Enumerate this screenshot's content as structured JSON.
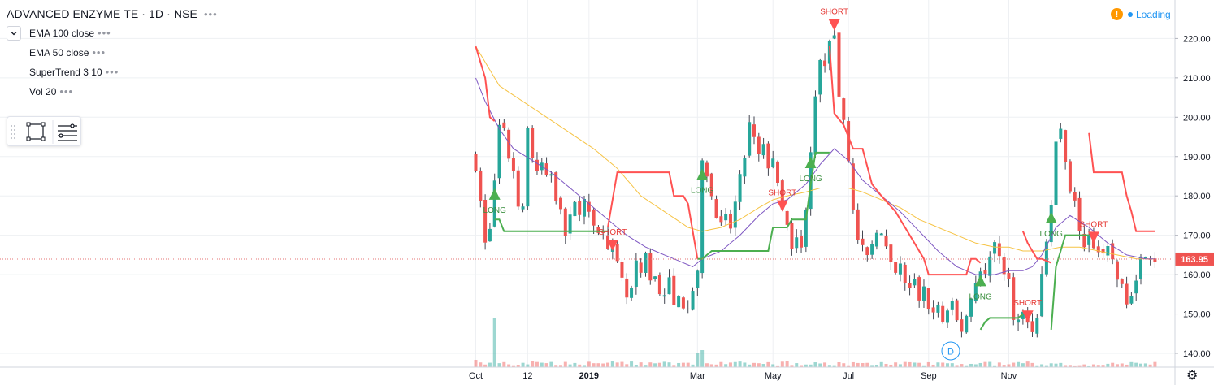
{
  "header": {
    "symbol_title": "ADVANCED ENZYME TE · 1D · NSE",
    "more_glyph": "•••",
    "indicators": [
      {
        "label": "EMA 100 close"
      },
      {
        "label": "EMA 50 close"
      },
      {
        "label": "SuperTrend 3 10"
      },
      {
        "label": "Vol 20"
      }
    ]
  },
  "status": {
    "warning_glyph": "!",
    "loading_text": "Loading"
  },
  "colors": {
    "up": "#26a69a",
    "down": "#ef5350",
    "wick": "#434651",
    "ema100": "#f6c344",
    "ema50": "#7e57c2",
    "supertrend_up": "#4caf50",
    "supertrend_down": "#ff5252",
    "price_line": "#e57373",
    "price_label_bg": "#ef5350",
    "grid": "#eef0f3"
  },
  "last_price_label": "163.95",
  "labels": {
    "event_marker": "D"
  },
  "chart_data": {
    "type": "candlestick",
    "title": "ADVANCED ENZYME TE · 1D · NSE",
    "y_axis": {
      "range": [
        138,
        225
      ],
      "ticks": [
        "140.00",
        "150.00",
        "160.00",
        "170.00",
        "180.00",
        "190.00",
        "200.00",
        "210.00",
        "220.00"
      ]
    },
    "x_axis": {
      "range": [
        -1,
        175
      ],
      "ticks": [
        {
          "label": "Oct",
          "x": 0
        },
        {
          "label": "12",
          "x": 11
        },
        {
          "label": "2019",
          "x": 24
        },
        {
          "label": "Mar",
          "x": 47
        },
        {
          "label": "May",
          "x": 63
        },
        {
          "label": "Jul",
          "x": 79
        },
        {
          "label": "Sep",
          "x": 96
        },
        {
          "label": "Nov",
          "x": 113
        }
      ]
    },
    "last_price": 163.95,
    "close_anchors": [
      [
        0,
        188
      ],
      [
        1,
        178
      ],
      [
        2,
        168
      ],
      [
        3,
        172
      ],
      [
        4,
        184
      ],
      [
        5,
        198
      ],
      [
        6,
        196
      ],
      [
        7,
        190
      ],
      [
        8,
        185
      ],
      [
        9,
        178
      ],
      [
        10,
        176
      ],
      [
        11,
        196
      ],
      [
        12,
        190
      ],
      [
        13,
        186
      ],
      [
        14,
        188
      ],
      [
        15,
        184
      ],
      [
        16,
        186
      ],
      [
        17,
        180
      ],
      [
        18,
        178
      ],
      [
        19,
        170
      ],
      [
        20,
        174
      ],
      [
        21,
        180
      ],
      [
        22,
        176
      ],
      [
        23,
        178
      ],
      [
        24,
        176
      ],
      [
        25,
        174
      ],
      [
        26,
        170
      ],
      [
        27,
        172
      ],
      [
        28,
        168
      ],
      [
        29,
        166
      ],
      [
        30,
        162
      ],
      [
        31,
        158
      ],
      [
        32,
        154
      ],
      [
        33,
        156
      ],
      [
        34,
        162
      ],
      [
        35,
        160
      ],
      [
        36,
        164
      ],
      [
        37,
        158
      ],
      [
        38,
        160
      ],
      [
        39,
        156
      ],
      [
        40,
        155
      ],
      [
        41,
        158
      ],
      [
        42,
        152
      ],
      [
        43,
        156
      ],
      [
        44,
        150
      ],
      [
        45,
        152
      ],
      [
        46,
        155
      ],
      [
        47,
        160
      ],
      [
        48,
        189
      ],
      [
        49,
        186
      ],
      [
        50,
        180
      ],
      [
        51,
        176
      ],
      [
        52,
        172
      ],
      [
        53,
        174
      ],
      [
        54,
        172
      ],
      [
        55,
        178
      ],
      [
        56,
        184
      ],
      [
        57,
        190
      ],
      [
        58,
        198
      ],
      [
        59,
        194
      ],
      [
        60,
        190
      ],
      [
        61,
        192
      ],
      [
        62,
        188
      ],
      [
        63,
        190
      ],
      [
        64,
        182
      ],
      [
        65,
        176
      ],
      [
        66,
        172
      ],
      [
        67,
        168
      ],
      [
        68,
        170
      ],
      [
        69,
        166
      ],
      [
        70,
        178
      ],
      [
        71,
        192
      ],
      [
        72,
        204
      ],
      [
        73,
        214
      ],
      [
        74,
        212
      ],
      [
        75,
        218
      ],
      [
        76,
        222
      ],
      [
        77,
        206
      ],
      [
        78,
        200
      ],
      [
        79,
        190
      ],
      [
        80,
        178
      ],
      [
        81,
        168
      ],
      [
        82,
        166
      ],
      [
        83,
        164
      ],
      [
        84,
        168
      ],
      [
        85,
        172
      ],
      [
        86,
        170
      ],
      [
        87,
        166
      ],
      [
        88,
        162
      ],
      [
        89,
        160
      ],
      [
        90,
        162
      ],
      [
        91,
        158
      ],
      [
        92,
        156
      ],
      [
        93,
        158
      ],
      [
        94,
        154
      ],
      [
        95,
        156
      ],
      [
        96,
        152
      ],
      [
        97,
        150
      ],
      [
        98,
        152
      ],
      [
        99,
        148
      ],
      [
        100,
        150
      ],
      [
        101,
        152
      ],
      [
        102,
        148
      ],
      [
        103,
        146
      ],
      [
        104,
        150
      ],
      [
        105,
        154
      ],
      [
        106,
        158
      ],
      [
        107,
        162
      ],
      [
        108,
        160
      ],
      [
        109,
        164
      ],
      [
        110,
        168
      ],
      [
        111,
        166
      ],
      [
        112,
        160
      ],
      [
        113,
        158
      ],
      [
        114,
        150
      ],
      [
        115,
        148
      ],
      [
        116,
        150
      ],
      [
        117,
        148
      ],
      [
        118,
        146
      ],
      [
        119,
        150
      ],
      [
        120,
        160
      ],
      [
        121,
        168
      ],
      [
        122,
        178
      ],
      [
        123,
        194
      ],
      [
        124,
        196
      ],
      [
        125,
        190
      ],
      [
        126,
        182
      ],
      [
        127,
        178
      ],
      [
        128,
        170
      ],
      [
        129,
        168
      ],
      [
        130,
        170
      ],
      [
        131,
        168
      ],
      [
        132,
        166
      ],
      [
        133,
        164
      ],
      [
        134,
        166
      ],
      [
        135,
        164
      ],
      [
        136,
        160
      ],
      [
        137,
        156
      ],
      [
        138,
        154
      ],
      [
        139,
        156
      ],
      [
        140,
        160
      ],
      [
        141,
        164
      ],
      [
        142,
        166
      ],
      [
        143,
        165
      ],
      [
        144,
        164
      ]
    ],
    "ema100_anchors": [
      [
        0,
        218
      ],
      [
        2,
        214
      ],
      [
        5,
        208
      ],
      [
        10,
        204
      ],
      [
        15,
        200
      ],
      [
        20,
        196
      ],
      [
        25,
        192
      ],
      [
        30,
        187
      ],
      [
        35,
        180
      ],
      [
        40,
        176
      ],
      [
        45,
        172
      ],
      [
        48,
        171
      ],
      [
        52,
        172
      ],
      [
        56,
        174
      ],
      [
        60,
        177
      ],
      [
        63,
        179
      ],
      [
        66,
        180
      ],
      [
        70,
        181
      ],
      [
        73,
        182
      ],
      [
        76,
        182
      ],
      [
        79,
        182
      ],
      [
        82,
        181
      ],
      [
        86,
        179
      ],
      [
        90,
        177
      ],
      [
        94,
        174
      ],
      [
        98,
        172
      ],
      [
        102,
        170
      ],
      [
        106,
        168
      ],
      [
        110,
        167
      ],
      [
        113,
        167
      ],
      [
        116,
        166
      ],
      [
        120,
        166
      ],
      [
        124,
        167
      ],
      [
        128,
        167
      ],
      [
        132,
        166
      ],
      [
        136,
        165
      ],
      [
        140,
        164
      ],
      [
        144,
        164
      ]
    ],
    "ema50_anchors": [
      [
        0,
        210
      ],
      [
        2,
        204
      ],
      [
        5,
        197
      ],
      [
        8,
        192
      ],
      [
        12,
        189
      ],
      [
        16,
        186
      ],
      [
        20,
        182
      ],
      [
        24,
        178
      ],
      [
        28,
        174
      ],
      [
        32,
        170
      ],
      [
        36,
        167
      ],
      [
        40,
        165
      ],
      [
        44,
        163
      ],
      [
        46,
        162
      ],
      [
        48,
        164
      ],
      [
        52,
        166
      ],
      [
        56,
        170
      ],
      [
        60,
        175
      ],
      [
        63,
        178
      ],
      [
        66,
        179
      ],
      [
        70,
        183
      ],
      [
        73,
        188
      ],
      [
        76,
        192
      ],
      [
        79,
        189
      ],
      [
        82,
        184
      ],
      [
        86,
        180
      ],
      [
        90,
        176
      ],
      [
        94,
        171
      ],
      [
        98,
        166
      ],
      [
        102,
        162
      ],
      [
        106,
        160
      ],
      [
        108,
        160
      ],
      [
        110,
        160
      ],
      [
        113,
        161
      ],
      [
        116,
        161
      ],
      [
        118,
        162
      ],
      [
        120,
        165
      ],
      [
        123,
        172
      ],
      [
        126,
        175
      ],
      [
        130,
        172
      ],
      [
        134,
        168
      ],
      [
        138,
        165
      ],
      [
        142,
        164
      ],
      [
        144,
        164
      ]
    ],
    "supertrend_segments": [
      {
        "side": "short",
        "points": [
          [
            0,
            218
          ],
          [
            2,
            210
          ],
          [
            3,
            200
          ],
          [
            4,
            199
          ]
        ]
      },
      {
        "side": "long",
        "points": [
          [
            4,
            174
          ],
          [
            5,
            174
          ],
          [
            6,
            171
          ],
          [
            27,
            171
          ],
          [
            28,
            171
          ]
        ]
      },
      {
        "side": "short",
        "points": [
          [
            28,
            172
          ],
          [
            29,
            179
          ],
          [
            30,
            186
          ],
          [
            41,
            186
          ],
          [
            42,
            180
          ],
          [
            44,
            180
          ],
          [
            45,
            178
          ],
          [
            46,
            171
          ],
          [
            47,
            164
          ]
        ]
      },
      {
        "side": "long",
        "points": [
          [
            47,
            164
          ],
          [
            48,
            164
          ],
          [
            50,
            166
          ],
          [
            62,
            166
          ],
          [
            63,
            172
          ],
          [
            66,
            172
          ],
          [
            67,
            174
          ],
          [
            69,
            174
          ],
          [
            70,
            174
          ],
          [
            71,
            183
          ],
          [
            72,
            191
          ],
          [
            75,
            191
          ]
        ]
      },
      {
        "side": "short",
        "points": [
          [
            75,
            218
          ],
          [
            76,
            201
          ],
          [
            78,
            198
          ],
          [
            80,
            192
          ],
          [
            82,
            192
          ],
          [
            84,
            183
          ],
          [
            86,
            180
          ],
          [
            89,
            176
          ],
          [
            92,
            170
          ],
          [
            95,
            164
          ],
          [
            96,
            160
          ],
          [
            104,
            160
          ],
          [
            105,
            164
          ],
          [
            106,
            164
          ],
          [
            107,
            163
          ]
        ]
      },
      {
        "side": "long",
        "points": [
          [
            107,
            146
          ],
          [
            108,
            148
          ],
          [
            109,
            149
          ],
          [
            115,
            149
          ],
          [
            116,
            150
          ]
        ]
      },
      {
        "side": "short",
        "points": [
          [
            116,
            171
          ],
          [
            117,
            168
          ],
          [
            118,
            166
          ],
          [
            119,
            164
          ],
          [
            120,
            164
          ],
          [
            122,
            163
          ]
        ]
      },
      {
        "side": "long",
        "points": [
          [
            122,
            146
          ],
          [
            123,
            162
          ],
          [
            124,
            166
          ],
          [
            125,
            170
          ],
          [
            128,
            170
          ],
          [
            130,
            170
          ]
        ]
      },
      {
        "side": "short",
        "points": [
          [
            130,
            196
          ],
          [
            131,
            186
          ],
          [
            137,
            186
          ],
          [
            138,
            180
          ],
          [
            139,
            176
          ],
          [
            140,
            171
          ],
          [
            144,
            171
          ]
        ]
      }
    ],
    "signals": [
      {
        "type": "long",
        "x": 4,
        "label": "LONG"
      },
      {
        "type": "short",
        "x": 29,
        "label": "SHORT"
      },
      {
        "type": "long",
        "x": 48,
        "label": "LONG"
      },
      {
        "type": "short",
        "x": 65,
        "label": "SHORT"
      },
      {
        "type": "long",
        "x": 71,
        "label": "LONG"
      },
      {
        "type": "short",
        "x": 76,
        "label": "SHORT"
      },
      {
        "type": "long",
        "x": 107,
        "label": "LONG"
      },
      {
        "type": "short",
        "x": 117,
        "label": "SHORT"
      },
      {
        "type": "long",
        "x": 122,
        "label": "LONG"
      },
      {
        "type": "short",
        "x": 131,
        "label": "SHORT"
      }
    ],
    "volume": {
      "spikes": [
        [
          4,
          1.0
        ],
        [
          47,
          0.3
        ],
        [
          48,
          0.35
        ],
        [
          0,
          0.15
        ],
        [
          12,
          0.12
        ],
        [
          66,
          0.12
        ],
        [
          77,
          0.1
        ]
      ]
    }
  }
}
